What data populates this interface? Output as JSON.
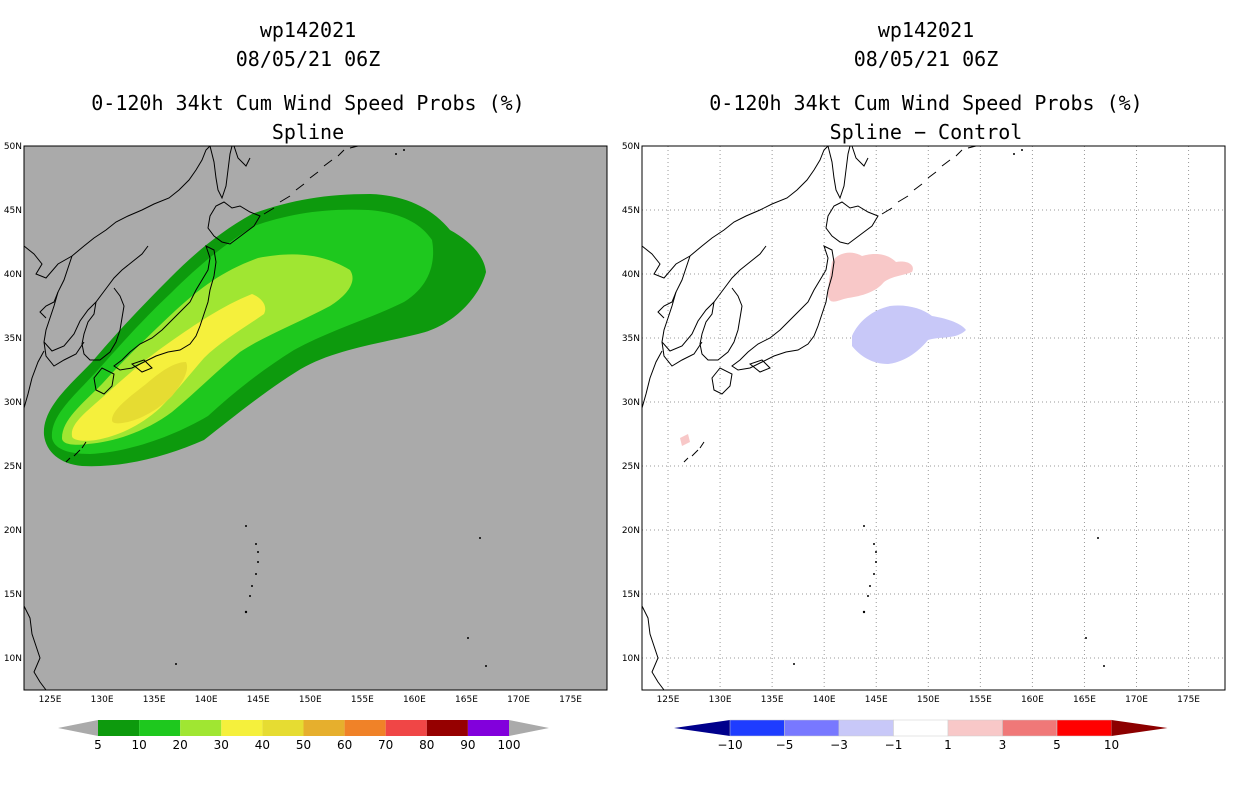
{
  "left": {
    "storm_id": "wp142021",
    "datetime": "08/05/21 06Z",
    "product": "0-120h 34kt Cum Wind Speed Probs (%)",
    "subtitle": "Spline"
  },
  "right": {
    "storm_id": "wp142021",
    "datetime": "08/05/21 06Z",
    "product": "0-120h 34kt Cum Wind Speed Probs (%)",
    "subtitle": "Spline − Control"
  },
  "map_extent": {
    "lon_min": 122.5,
    "lon_max": 178.5,
    "lat_min": 7.5,
    "lat_max": 50
  },
  "lat_labels": [
    "50N",
    "45N",
    "40N",
    "35N",
    "30N",
    "25N",
    "20N",
    "15N",
    "10N"
  ],
  "lon_labels": [
    "125E",
    "130E",
    "135E",
    "140E",
    "145E",
    "150E",
    "155E",
    "160E",
    "165E",
    "170E",
    "175E"
  ],
  "colors": {
    "land_gray": "#aaaaaa",
    "p5": "#0d9a0d",
    "p10": "#1ec81e",
    "p20": "#a0e632",
    "p30": "#f5f03c",
    "p40": "#e6dc32",
    "p50": "#e6af2d",
    "p60": "#f08228",
    "p70": "#f04646",
    "p80": "#960000",
    "p90": "#8200dc",
    "diff_pos1": "#f8c8c8",
    "diff_neg1": "#c8c8f8"
  },
  "legend_left": {
    "labels": [
      "5",
      "10",
      "20",
      "30",
      "40",
      "50",
      "60",
      "70",
      "80",
      "90",
      "100"
    ],
    "colors": [
      "#0d9a0d",
      "#1ec81e",
      "#a0e632",
      "#f5f03c",
      "#e6dc32",
      "#e6af2d",
      "#f08228",
      "#f04646",
      "#960000",
      "#8200dc"
    ]
  },
  "legend_right": {
    "labels": [
      "−10",
      "−5",
      "−3",
      "−1",
      "1",
      "3",
      "5",
      "10"
    ],
    "colors": [
      "#1e3cff",
      "#7878ff",
      "#c8c8f8",
      "#ffffff",
      "#f8c8c8",
      "#f07878",
      "#ff0000"
    ],
    "end_low": "#00008c",
    "end_high": "#8c0000"
  }
}
